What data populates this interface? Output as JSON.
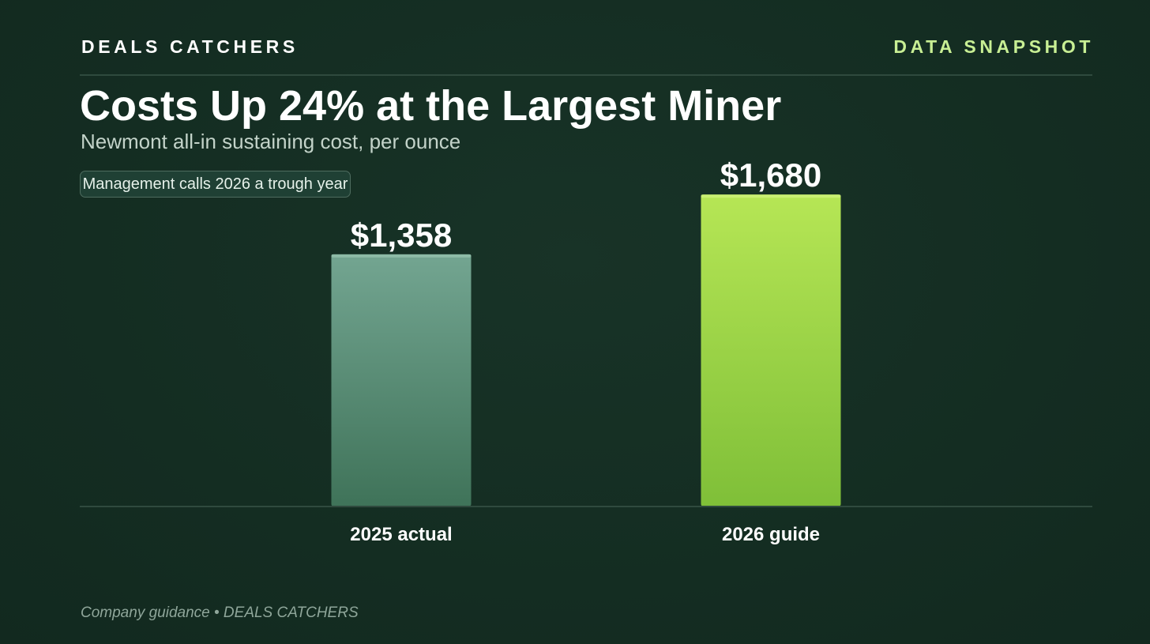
{
  "header": {
    "brand": "DEALS CATCHERS",
    "tag": "DATA SNAPSHOT"
  },
  "title": "Costs Up 24% at the Largest Miner",
  "subtitle": "Newmont all-in sustaining cost, per ounce",
  "callout": "Management calls 2026 a trough year",
  "footer": "Company guidance • DEALS CATCHERS",
  "colors": {
    "accent": "#c8ef94",
    "bar_actual": "#6b9e88",
    "bar_guide": "#a6dc48"
  },
  "chart_data": {
    "type": "bar",
    "categories": [
      "2025 actual",
      "2026 guide"
    ],
    "values": [
      1358,
      1680
    ],
    "value_labels": [
      "$1,358",
      "$1,680"
    ],
    "ylim": [
      0,
      2000
    ],
    "grid": false,
    "legend": "none"
  }
}
